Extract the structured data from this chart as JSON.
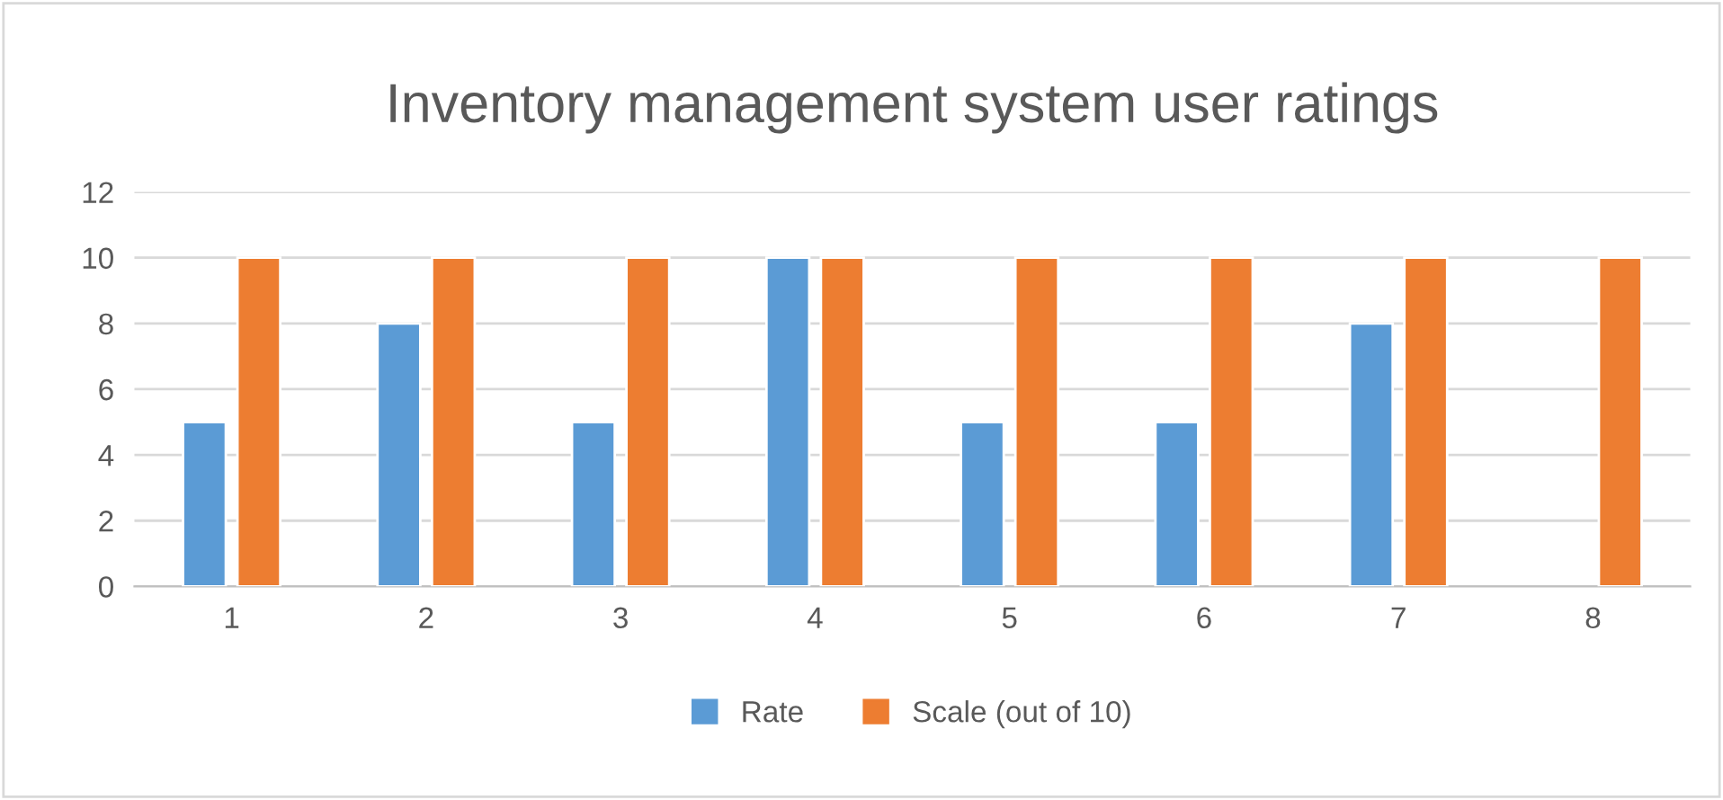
{
  "chart_data": {
    "type": "bar",
    "title": "Inventory management system user ratings",
    "categories": [
      "1",
      "2",
      "3",
      "4",
      "5",
      "6",
      "7",
      "8"
    ],
    "series": [
      {
        "name": "Rate",
        "color": "#5b9bd5",
        "values": [
          5,
          8,
          5,
          10,
          5,
          5,
          8,
          null
        ]
      },
      {
        "name": "Scale (out of 10)",
        "color": "#ed7d31",
        "values": [
          10,
          10,
          10,
          10,
          10,
          10,
          10,
          10
        ]
      }
    ],
    "ylim": [
      0,
      12
    ],
    "yticks": [
      0,
      2,
      4,
      6,
      8,
      10,
      12
    ],
    "grid": "y",
    "legend": "bottom"
  }
}
